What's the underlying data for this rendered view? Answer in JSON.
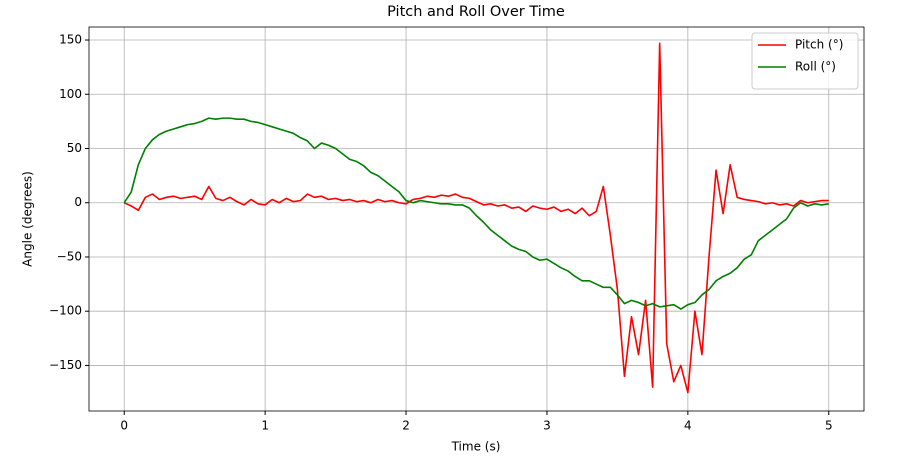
{
  "chart_data": {
    "type": "line",
    "title": "Pitch and Roll Over Time",
    "x_label": "Time (s)",
    "y_label": "Angle (degrees)",
    "x": [
      0,
      0.05,
      0.1,
      0.15,
      0.2,
      0.25,
      0.3,
      0.35,
      0.4,
      0.45,
      0.5,
      0.55,
      0.6,
      0.65,
      0.7,
      0.75,
      0.8,
      0.85,
      0.9,
      0.95,
      1,
      1.05,
      1.1,
      1.15,
      1.2,
      1.25,
      1.3,
      1.35,
      1.4,
      1.45,
      1.5,
      1.55,
      1.6,
      1.65,
      1.7,
      1.75,
      1.8,
      1.85,
      1.9,
      1.95,
      2,
      2.05,
      2.1,
      2.15,
      2.2,
      2.25,
      2.3,
      2.35,
      2.4,
      2.45,
      2.5,
      2.55,
      2.6,
      2.65,
      2.7,
      2.75,
      2.8,
      2.85,
      2.9,
      2.95,
      3,
      3.05,
      3.1,
      3.15,
      3.2,
      3.25,
      3.3,
      3.35,
      3.4,
      3.45,
      3.5,
      3.55,
      3.6,
      3.65,
      3.7,
      3.75,
      3.8,
      3.85,
      3.9,
      3.95,
      4,
      4.05,
      4.1,
      4.15,
      4.2,
      4.25,
      4.3,
      4.35,
      4.4,
      4.45,
      4.5,
      4.55,
      4.6,
      4.65,
      4.7,
      4.75,
      4.8,
      4.85,
      4.9,
      4.95,
      5
    ],
    "series": [
      {
        "name": "Pitch (°)",
        "color": "#ff0000",
        "values": [
          0,
          -3,
          -7,
          5,
          8,
          3,
          5,
          6,
          4,
          5,
          6,
          3,
          15,
          4,
          2,
          5,
          1,
          -2,
          3,
          -1,
          -2,
          3,
          0,
          4,
          1,
          2,
          8,
          5,
          6,
          3,
          4,
          2,
          3,
          1,
          2,
          0,
          3,
          1,
          2,
          0,
          -1,
          3,
          4,
          6,
          5,
          7,
          6,
          8,
          5,
          4,
          1,
          -2,
          -1,
          -3,
          -2,
          -5,
          -4,
          -8,
          -3,
          -5,
          -6,
          -4,
          -8,
          -6,
          -10,
          -5,
          -12,
          -8,
          15,
          -30,
          -80,
          -160,
          -105,
          -140,
          -90,
          -170,
          147,
          -130,
          -165,
          -150,
          -175,
          -100,
          -140,
          -50,
          30,
          -10,
          35,
          5,
          3,
          2,
          1,
          -1,
          0,
          -2,
          -1,
          -3,
          2,
          0,
          1,
          2,
          2
        ]
      },
      {
        "name": "Roll (°)",
        "color": "#008000",
        "values": [
          0,
          10,
          35,
          50,
          58,
          63,
          66,
          68,
          70,
          72,
          73,
          75,
          78,
          77,
          78,
          78,
          77,
          77,
          75,
          74,
          72,
          70,
          68,
          66,
          64,
          60,
          57,
          50,
          55,
          53,
          50,
          45,
          40,
          38,
          34,
          28,
          25,
          20,
          15,
          10,
          2,
          0,
          2,
          1,
          0,
          -1,
          -1,
          -2,
          -2,
          -5,
          -12,
          -18,
          -25,
          -30,
          -35,
          -40,
          -43,
          -45,
          -50,
          -53,
          -52,
          -56,
          -60,
          -63,
          -68,
          -72,
          -72,
          -75,
          -78,
          -78,
          -85,
          -93,
          -90,
          -92,
          -95,
          -93,
          -96,
          -95,
          -94,
          -98,
          -94,
          -92,
          -85,
          -80,
          -72,
          -68,
          -65,
          -60,
          -52,
          -48,
          -35,
          -30,
          -25,
          -20,
          -15,
          -5,
          0,
          -3,
          -1,
          -2,
          -1
        ]
      }
    ],
    "xlim": [
      -0.25,
      5.25
    ],
    "xticks": [
      0,
      1,
      2,
      3,
      4,
      5
    ],
    "ylim": [
      -192,
      162
    ],
    "yticks": [
      {
        "value": -150,
        "label": "−150"
      },
      {
        "value": -100,
        "label": "−100"
      },
      {
        "value": -50,
        "label": "−50"
      },
      0,
      50,
      100,
      150
    ],
    "grid": true,
    "legend": "upper right"
  }
}
